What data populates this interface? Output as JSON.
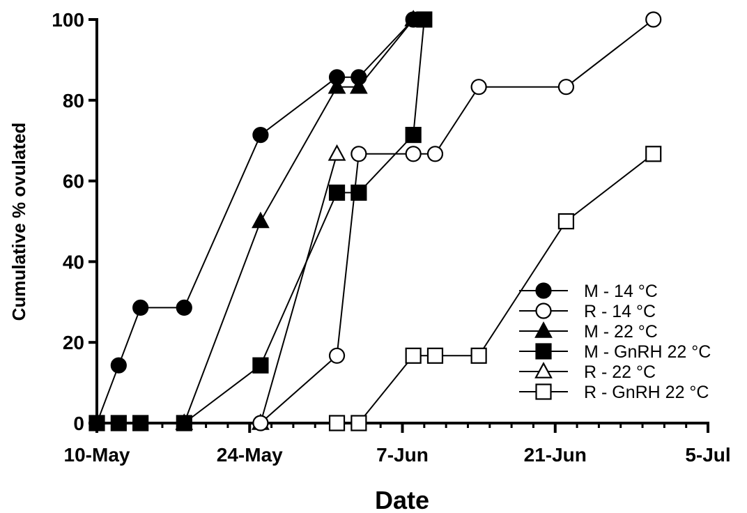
{
  "chart_data": {
    "type": "line",
    "title": "",
    "xlabel": "Date",
    "ylabel": "Cumulative % ovulated",
    "ylim": [
      0,
      100
    ],
    "yticks": [
      0,
      20,
      40,
      60,
      80,
      100
    ],
    "x_axis_type": "date",
    "xlim": [
      "2014-05-10",
      "2014-07-05"
    ],
    "xticks": [
      {
        "date": "2014-05-10",
        "label": "10-May"
      },
      {
        "date": "2014-05-24",
        "label": "24-May"
      },
      {
        "date": "2014-06-07",
        "label": "7-Jun"
      },
      {
        "date": "2014-06-21",
        "label": "21-Jun"
      },
      {
        "date": "2014-07-05",
        "label": "5-Jul"
      }
    ],
    "grid": false,
    "legend_position": "bottom-right",
    "series": [
      {
        "name": "M - 14 °C",
        "marker": "circle",
        "filled": true,
        "points": [
          [
            "2014-05-10",
            0
          ],
          [
            "2014-05-12",
            14.3
          ],
          [
            "2014-05-14",
            28.6
          ],
          [
            "2014-05-18",
            28.6
          ],
          [
            "2014-05-25",
            71.4
          ],
          [
            "2014-06-01",
            85.7
          ],
          [
            "2014-06-03",
            85.7
          ],
          [
            "2014-06-08",
            100
          ]
        ]
      },
      {
        "name": "R - 14 °C",
        "marker": "circle",
        "filled": false,
        "points": [
          [
            "2014-05-25",
            0
          ],
          [
            "2014-06-01",
            16.7
          ],
          [
            "2014-06-03",
            66.7
          ],
          [
            "2014-06-08",
            66.7
          ],
          [
            "2014-06-10",
            66.7
          ],
          [
            "2014-06-14",
            83.3
          ],
          [
            "2014-06-22",
            83.3
          ],
          [
            "2014-06-30",
            100
          ]
        ]
      },
      {
        "name": "M - 22 °C",
        "marker": "triangle",
        "filled": true,
        "points": [
          [
            "2014-05-18",
            0
          ],
          [
            "2014-05-25",
            50
          ],
          [
            "2014-06-01",
            83.3
          ],
          [
            "2014-06-03",
            83.3
          ],
          [
            "2014-06-08",
            100
          ]
        ]
      },
      {
        "name": "M - GnRH 22 °C",
        "marker": "square",
        "filled": true,
        "points": [
          [
            "2014-05-10",
            0
          ],
          [
            "2014-05-12",
            0
          ],
          [
            "2014-05-14",
            0
          ],
          [
            "2014-05-18",
            0
          ],
          [
            "2014-05-25",
            14.3
          ],
          [
            "2014-06-01",
            57.1
          ],
          [
            "2014-06-03",
            57.1
          ],
          [
            "2014-06-08",
            71.4
          ],
          [
            "2014-06-09",
            100
          ]
        ]
      },
      {
        "name": "R - 22 °C",
        "marker": "triangle",
        "filled": false,
        "points": [
          [
            "2014-05-25",
            0
          ],
          [
            "2014-06-01",
            66.7
          ]
        ]
      },
      {
        "name": "R - GnRH 22 °C",
        "marker": "square",
        "filled": false,
        "points": [
          [
            "2014-06-01",
            0
          ],
          [
            "2014-06-03",
            0
          ],
          [
            "2014-06-08",
            16.7
          ],
          [
            "2014-06-10",
            16.7
          ],
          [
            "2014-06-14",
            16.7
          ],
          [
            "2014-06-22",
            50
          ],
          [
            "2014-06-30",
            66.7
          ]
        ]
      }
    ]
  }
}
